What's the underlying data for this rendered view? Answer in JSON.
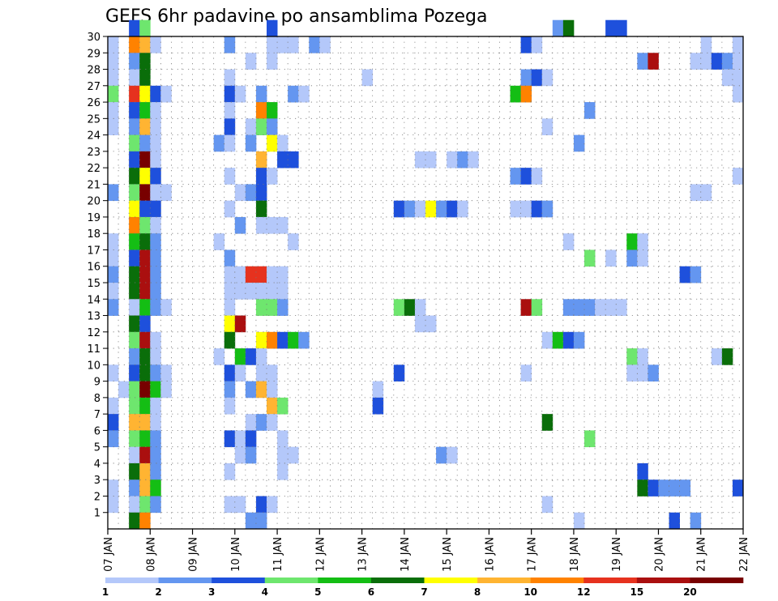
{
  "chart_data": {
    "type": "heatmap",
    "title": "GEFS 6hr padavine po ansamblima Pozega",
    "xlabel": "",
    "ylabel": "",
    "x_tick_labels": [
      "07 JAN",
      "08 JAN",
      "09 JAN",
      "10 JAN",
      "11 JAN",
      "12 JAN",
      "13 JAN",
      "14 JAN",
      "15 JAN",
      "16 JAN",
      "17 JAN",
      "18 JAN",
      "19 JAN",
      "20 JAN",
      "21 JAN",
      "22 JAN"
    ],
    "y_tick_labels": [
      "1",
      "2",
      "3",
      "4",
      "5",
      "6",
      "7",
      "8",
      "9",
      "10",
      "11",
      "12",
      "13",
      "14",
      "15",
      "16",
      "17",
      "18",
      "19",
      "20",
      "21",
      "22",
      "23",
      "24",
      "25",
      "26",
      "27",
      "28",
      "29",
      "30"
    ],
    "x_range_steps": [
      0,
      60
    ],
    "y_range_members": [
      0,
      30
    ],
    "grid": true,
    "colorbar": {
      "levels": [
        1,
        2,
        3,
        4,
        5,
        6,
        7,
        8,
        10,
        12,
        15,
        20
      ],
      "tick_labels": [
        "1",
        "2",
        "3",
        "4",
        "5",
        "6",
        "7",
        "8",
        "10",
        "12",
        "15",
        "20"
      ],
      "colors": [
        "#b4c8fa",
        "#6496f0",
        "#1e50dc",
        "#6ee66e",
        "#14be14",
        "#0a6e0a",
        "#ffff00",
        "#ffb432",
        "#ff8200",
        "#e6321e",
        "#aa0f0f",
        "#780000"
      ],
      "legend_position": "bottom"
    },
    "cells_format": "[member, step, bin] — step = 6-hour step from 07 JAN 00z, bin = colour class (1..12)",
    "cells": [
      [
        30,
        2,
        3
      ],
      [
        30,
        3,
        4
      ],
      [
        30,
        15,
        3
      ],
      [
        30,
        42,
        2
      ],
      [
        30,
        43,
        6
      ],
      [
        30,
        47,
        3
      ],
      [
        30,
        48,
        3
      ],
      [
        29,
        0,
        1
      ],
      [
        29,
        2,
        9
      ],
      [
        29,
        3,
        8
      ],
      [
        29,
        4,
        1
      ],
      [
        29,
        11,
        2
      ],
      [
        29,
        15,
        1
      ],
      [
        29,
        16,
        1
      ],
      [
        29,
        17,
        1
      ],
      [
        29,
        19,
        2
      ],
      [
        29,
        20,
        1
      ],
      [
        29,
        39,
        3
      ],
      [
        29,
        40,
        1
      ],
      [
        29,
        56,
        1
      ],
      [
        29,
        59,
        1
      ],
      [
        28,
        0,
        1
      ],
      [
        28,
        2,
        2
      ],
      [
        28,
        3,
        6
      ],
      [
        28,
        13,
        1
      ],
      [
        28,
        15,
        1
      ],
      [
        28,
        50,
        2
      ],
      [
        28,
        51,
        11
      ],
      [
        28,
        55,
        1
      ],
      [
        28,
        56,
        1
      ],
      [
        28,
        57,
        3
      ],
      [
        28,
        58,
        2
      ],
      [
        28,
        59,
        1
      ],
      [
        27,
        0,
        1
      ],
      [
        27,
        2,
        1
      ],
      [
        27,
        3,
        6
      ],
      [
        27,
        11,
        1
      ],
      [
        27,
        24,
        1
      ],
      [
        27,
        39,
        2
      ],
      [
        27,
        40,
        3
      ],
      [
        27,
        41,
        1
      ],
      [
        27,
        58,
        1
      ],
      [
        27,
        59,
        1
      ],
      [
        26,
        0,
        4
      ],
      [
        26,
        2,
        10
      ],
      [
        26,
        3,
        7
      ],
      [
        26,
        4,
        3
      ],
      [
        26,
        5,
        1
      ],
      [
        26,
        11,
        3
      ],
      [
        26,
        12,
        1
      ],
      [
        26,
        14,
        2
      ],
      [
        26,
        17,
        2
      ],
      [
        26,
        18,
        1
      ],
      [
        26,
        38,
        5
      ],
      [
        26,
        39,
        9
      ],
      [
        26,
        59,
        1
      ],
      [
        25,
        0,
        1
      ],
      [
        25,
        2,
        3
      ],
      [
        25,
        3,
        5
      ],
      [
        25,
        4,
        1
      ],
      [
        25,
        11,
        1
      ],
      [
        25,
        14,
        9
      ],
      [
        25,
        15,
        5
      ],
      [
        25,
        45,
        2
      ],
      [
        24,
        0,
        1
      ],
      [
        24,
        2,
        2
      ],
      [
        24,
        3,
        8
      ],
      [
        24,
        4,
        1
      ],
      [
        24,
        11,
        3
      ],
      [
        24,
        13,
        1
      ],
      [
        24,
        14,
        4
      ],
      [
        24,
        15,
        2
      ],
      [
        24,
        41,
        1
      ],
      [
        23,
        2,
        4
      ],
      [
        23,
        3,
        2
      ],
      [
        23,
        4,
        1
      ],
      [
        23,
        10,
        2
      ],
      [
        23,
        11,
        1
      ],
      [
        23,
        13,
        2
      ],
      [
        23,
        15,
        7
      ],
      [
        23,
        16,
        1
      ],
      [
        23,
        44,
        2
      ],
      [
        22,
        2,
        3
      ],
      [
        22,
        3,
        12
      ],
      [
        22,
        4,
        1
      ],
      [
        22,
        14,
        8
      ],
      [
        22,
        16,
        3
      ],
      [
        22,
        17,
        3
      ],
      [
        22,
        29,
        1
      ],
      [
        22,
        30,
        1
      ],
      [
        22,
        32,
        1
      ],
      [
        22,
        33,
        2
      ],
      [
        22,
        34,
        1
      ],
      [
        21,
        2,
        6
      ],
      [
        21,
        3,
        7
      ],
      [
        21,
        4,
        3
      ],
      [
        21,
        11,
        1
      ],
      [
        21,
        14,
        3
      ],
      [
        21,
        15,
        1
      ],
      [
        21,
        38,
        2
      ],
      [
        21,
        39,
        3
      ],
      [
        21,
        40,
        1
      ],
      [
        21,
        59,
        1
      ],
      [
        20,
        0,
        2
      ],
      [
        20,
        2,
        4
      ],
      [
        20,
        3,
        12
      ],
      [
        20,
        4,
        1
      ],
      [
        20,
        5,
        1
      ],
      [
        20,
        12,
        1
      ],
      [
        20,
        13,
        2
      ],
      [
        20,
        14,
        3
      ],
      [
        20,
        55,
        1
      ],
      [
        20,
        56,
        1
      ],
      [
        19,
        2,
        7
      ],
      [
        19,
        3,
        3
      ],
      [
        19,
        4,
        3
      ],
      [
        19,
        11,
        1
      ],
      [
        19,
        14,
        6
      ],
      [
        19,
        27,
        3
      ],
      [
        19,
        28,
        2
      ],
      [
        19,
        29,
        1
      ],
      [
        19,
        30,
        7
      ],
      [
        19,
        31,
        2
      ],
      [
        19,
        32,
        3
      ],
      [
        19,
        33,
        1
      ],
      [
        19,
        38,
        1
      ],
      [
        19,
        39,
        1
      ],
      [
        19,
        40,
        3
      ],
      [
        19,
        41,
        2
      ],
      [
        18,
        2,
        9
      ],
      [
        18,
        3,
        4
      ],
      [
        18,
        4,
        1
      ],
      [
        18,
        12,
        2
      ],
      [
        18,
        14,
        1
      ],
      [
        18,
        15,
        1
      ],
      [
        18,
        16,
        1
      ],
      [
        17,
        0,
        1
      ],
      [
        17,
        2,
        5
      ],
      [
        17,
        3,
        6
      ],
      [
        17,
        4,
        2
      ],
      [
        17,
        10,
        1
      ],
      [
        17,
        17,
        1
      ],
      [
        17,
        43,
        1
      ],
      [
        17,
        49,
        5
      ],
      [
        17,
        50,
        1
      ],
      [
        16,
        0,
        1
      ],
      [
        16,
        2,
        3
      ],
      [
        16,
        3,
        11
      ],
      [
        16,
        4,
        2
      ],
      [
        16,
        11,
        2
      ],
      [
        16,
        45,
        4
      ],
      [
        16,
        47,
        1
      ],
      [
        16,
        49,
        2
      ],
      [
        16,
        50,
        1
      ],
      [
        15,
        0,
        2
      ],
      [
        15,
        2,
        6
      ],
      [
        15,
        3,
        11
      ],
      [
        15,
        4,
        2
      ],
      [
        15,
        11,
        1
      ],
      [
        15,
        12,
        1
      ],
      [
        15,
        13,
        10
      ],
      [
        15,
        14,
        10
      ],
      [
        15,
        15,
        1
      ],
      [
        15,
        16,
        1
      ],
      [
        15,
        54,
        3
      ],
      [
        15,
        55,
        2
      ],
      [
        14,
        0,
        1
      ],
      [
        14,
        2,
        6
      ],
      [
        14,
        3,
        11
      ],
      [
        14,
        4,
        2
      ],
      [
        14,
        11,
        1
      ],
      [
        14,
        12,
        1
      ],
      [
        14,
        13,
        1
      ],
      [
        14,
        14,
        1
      ],
      [
        14,
        15,
        1
      ],
      [
        14,
        16,
        1
      ],
      [
        13,
        0,
        2
      ],
      [
        13,
        2,
        1
      ],
      [
        13,
        3,
        5
      ],
      [
        13,
        4,
        2
      ],
      [
        13,
        5,
        1
      ],
      [
        13,
        11,
        1
      ],
      [
        13,
        14,
        4
      ],
      [
        13,
        15,
        4
      ],
      [
        13,
        16,
        2
      ],
      [
        13,
        27,
        4
      ],
      [
        13,
        28,
        6
      ],
      [
        13,
        29,
        1
      ],
      [
        13,
        39,
        11
      ],
      [
        13,
        40,
        4
      ],
      [
        13,
        43,
        2
      ],
      [
        13,
        44,
        2
      ],
      [
        13,
        45,
        2
      ],
      [
        13,
        46,
        1
      ],
      [
        13,
        47,
        1
      ],
      [
        13,
        48,
        1
      ],
      [
        12,
        2,
        6
      ],
      [
        12,
        3,
        3
      ],
      [
        12,
        11,
        7
      ],
      [
        12,
        12,
        11
      ],
      [
        12,
        29,
        1
      ],
      [
        12,
        30,
        1
      ],
      [
        11,
        2,
        4
      ],
      [
        11,
        3,
        11
      ],
      [
        11,
        4,
        1
      ],
      [
        11,
        11,
        6
      ],
      [
        11,
        14,
        7
      ],
      [
        11,
        15,
        9
      ],
      [
        11,
        16,
        3
      ],
      [
        11,
        17,
        5
      ],
      [
        11,
        18,
        2
      ],
      [
        11,
        41,
        1
      ],
      [
        11,
        42,
        5
      ],
      [
        11,
        43,
        3
      ],
      [
        11,
        44,
        2
      ],
      [
        10,
        2,
        2
      ],
      [
        10,
        3,
        6
      ],
      [
        10,
        4,
        1
      ],
      [
        10,
        10,
        1
      ],
      [
        10,
        12,
        5
      ],
      [
        10,
        13,
        3
      ],
      [
        10,
        14,
        1
      ],
      [
        10,
        49,
        4
      ],
      [
        10,
        50,
        1
      ],
      [
        10,
        57,
        1
      ],
      [
        10,
        58,
        6
      ],
      [
        9,
        0,
        1
      ],
      [
        9,
        2,
        3
      ],
      [
        9,
        3,
        6
      ],
      [
        9,
        4,
        2
      ],
      [
        9,
        5,
        1
      ],
      [
        9,
        11,
        3
      ],
      [
        9,
        12,
        1
      ],
      [
        9,
        14,
        1
      ],
      [
        9,
        15,
        1
      ],
      [
        9,
        27,
        3
      ],
      [
        9,
        39,
        1
      ],
      [
        9,
        49,
        1
      ],
      [
        9,
        50,
        1
      ],
      [
        9,
        51,
        2
      ],
      [
        8,
        1,
        1
      ],
      [
        8,
        2,
        4
      ],
      [
        8,
        3,
        12
      ],
      [
        8,
        4,
        5
      ],
      [
        8,
        5,
        1
      ],
      [
        8,
        11,
        2
      ],
      [
        8,
        13,
        2
      ],
      [
        8,
        14,
        8
      ],
      [
        8,
        15,
        1
      ],
      [
        8,
        25,
        1
      ],
      [
        7,
        0,
        1
      ],
      [
        7,
        2,
        4
      ],
      [
        7,
        3,
        5
      ],
      [
        7,
        4,
        1
      ],
      [
        7,
        11,
        1
      ],
      [
        7,
        15,
        8
      ],
      [
        7,
        16,
        4
      ],
      [
        7,
        25,
        3
      ],
      [
        6,
        0,
        3
      ],
      [
        6,
        2,
        8
      ],
      [
        6,
        3,
        8
      ],
      [
        6,
        4,
        1
      ],
      [
        6,
        13,
        1
      ],
      [
        6,
        14,
        2
      ],
      [
        6,
        15,
        1
      ],
      [
        6,
        41,
        6
      ],
      [
        5,
        0,
        2
      ],
      [
        5,
        2,
        4
      ],
      [
        5,
        3,
        5
      ],
      [
        5,
        4,
        2
      ],
      [
        5,
        11,
        3
      ],
      [
        5,
        12,
        1
      ],
      [
        5,
        13,
        3
      ],
      [
        5,
        16,
        1
      ],
      [
        5,
        45,
        4
      ],
      [
        4,
        2,
        1
      ],
      [
        4,
        3,
        11
      ],
      [
        4,
        4,
        2
      ],
      [
        4,
        12,
        1
      ],
      [
        4,
        13,
        2
      ],
      [
        4,
        16,
        1
      ],
      [
        4,
        17,
        1
      ],
      [
        4,
        31,
        2
      ],
      [
        4,
        32,
        1
      ],
      [
        3,
        2,
        6
      ],
      [
        3,
        3,
        8
      ],
      [
        3,
        4,
        2
      ],
      [
        3,
        11,
        1
      ],
      [
        3,
        16,
        1
      ],
      [
        3,
        50,
        3
      ],
      [
        2,
        0,
        1
      ],
      [
        2,
        2,
        2
      ],
      [
        2,
        3,
        8
      ],
      [
        2,
        4,
        5
      ],
      [
        2,
        50,
        6
      ],
      [
        2,
        51,
        3
      ],
      [
        2,
        52,
        2
      ],
      [
        2,
        53,
        2
      ],
      [
        2,
        54,
        2
      ],
      [
        2,
        59,
        3
      ],
      [
        1,
        0,
        1
      ],
      [
        1,
        2,
        1
      ],
      [
        1,
        3,
        4
      ],
      [
        1,
        4,
        2
      ],
      [
        1,
        11,
        1
      ],
      [
        1,
        12,
        1
      ],
      [
        1,
        14,
        3
      ],
      [
        1,
        15,
        1
      ],
      [
        1,
        41,
        1
      ],
      [
        0,
        2,
        6
      ],
      [
        0,
        3,
        9
      ],
      [
        0,
        13,
        2
      ],
      [
        0,
        14,
        2
      ],
      [
        0,
        44,
        1
      ],
      [
        0,
        53,
        3
      ],
      [
        0,
        55,
        2
      ]
    ]
  }
}
